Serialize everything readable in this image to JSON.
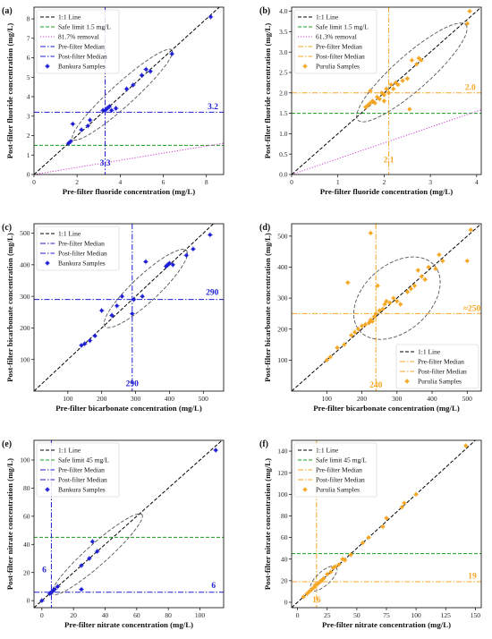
{
  "chart_data": [
    {
      "panel_label": "(a)",
      "type": "scatter",
      "xlabel": "Pre-filter fluoride concentration (mg/L)",
      "ylabel": "Post-filter fluoride concentration (mg/L)",
      "xlim": [
        0,
        8.8
      ],
      "ylim": [
        0,
        8.6
      ],
      "xticks": [
        0,
        2,
        4,
        6,
        8
      ],
      "yticks": [
        0,
        1,
        2,
        3,
        4,
        5,
        6,
        7,
        8
      ],
      "points_color": "#1f1fd6",
      "points": [
        [
          1.6,
          1.6
        ],
        [
          1.7,
          1.7
        ],
        [
          1.8,
          2.6
        ],
        [
          2.2,
          2.3
        ],
        [
          2.5,
          2.5
        ],
        [
          2.6,
          2.8
        ],
        [
          3.2,
          3.3
        ],
        [
          3.3,
          3.3
        ],
        [
          3.4,
          3.4
        ],
        [
          3.5,
          3.5
        ],
        [
          3.6,
          3.3
        ],
        [
          3.8,
          3.4
        ],
        [
          4.3,
          4.4
        ],
        [
          4.6,
          4.6
        ],
        [
          5.0,
          5.1
        ],
        [
          5.2,
          5.4
        ],
        [
          5.4,
          5.3
        ],
        [
          6.4,
          6.2
        ],
        [
          8.2,
          8.1
        ]
      ],
      "ellipse": {
        "cx": 4.1,
        "cy": 4.1,
        "rx": 6.5,
        "ry": 0.55
      },
      "median_x": 3.3,
      "median_y": 3.2,
      "median_color": "#1f1fd6",
      "median_dash": "dashdot",
      "safe_limit": 1.5,
      "removal_slope": 0.183,
      "legend": [
        "1:1 Line",
        "Safe limit 1.5 mg/L",
        "81.7% removal",
        "Pre-filter Median",
        "Post-filter Median",
        "Bankura Samples"
      ],
      "legend_styles": [
        "identity",
        "safe",
        "removal",
        "pre",
        "post",
        "marker"
      ],
      "legend_pos": "top-left",
      "annotations": [
        {
          "text": "3.2",
          "x": 8.55,
          "y": 3.35,
          "anchor": "end"
        },
        {
          "text": "3.3",
          "x": 3.3,
          "y": 0.45,
          "anchor": "middle"
        }
      ]
    },
    {
      "panel_label": "(b)",
      "type": "scatter",
      "xlabel": "Pre-filter fluoride concentration (mg/L)",
      "ylabel": "Post-filter fluoride concentration (mg/L)",
      "xlim": [
        0,
        4.1
      ],
      "ylim": [
        0,
        4.1
      ],
      "xticks": [
        0,
        1,
        2,
        3,
        4
      ],
      "yticks": [
        0,
        0.5,
        1,
        1.5,
        2,
        2.5,
        3,
        3.5,
        4
      ],
      "tick_decimals": 1,
      "points_color": "#f5a623",
      "points": [
        [
          1.6,
          1.65
        ],
        [
          1.65,
          1.7
        ],
        [
          1.7,
          1.75
        ],
        [
          1.75,
          1.8
        ],
        [
          1.8,
          1.75
        ],
        [
          1.85,
          1.9
        ],
        [
          1.9,
          1.85
        ],
        [
          1.95,
          2.0
        ],
        [
          2.0,
          1.95
        ],
        [
          2.05,
          2.1
        ],
        [
          2.1,
          2.0
        ],
        [
          2.15,
          2.2
        ],
        [
          2.2,
          2.1
        ],
        [
          2.25,
          2.25
        ],
        [
          2.3,
          2.2
        ],
        [
          2.4,
          2.3
        ],
        [
          2.5,
          2.35
        ],
        [
          2.55,
          1.6
        ],
        [
          2.6,
          2.8
        ],
        [
          2.7,
          2.7
        ],
        [
          2.75,
          2.85
        ],
        [
          2.8,
          2.8
        ],
        [
          1.7,
          2.05
        ],
        [
          2.0,
          1.8
        ],
        [
          3.8,
          3.7
        ],
        [
          3.85,
          4.0
        ]
      ],
      "ellipse": {
        "cx": 2.6,
        "cy": 2.5,
        "rx": 3.3,
        "ry": 0.4
      },
      "median_x": 2.1,
      "median_y": 2.0,
      "median_color": "#f5a623",
      "median_dash": "dashdot",
      "safe_limit": 1.5,
      "removal_slope": 0.387,
      "legend": [
        "1:1 Line",
        "Safe limit 1.5 mg/L",
        "61.3% removal",
        "Pre-filter Median",
        "Post-filter Median",
        "Purulia Samples"
      ],
      "legend_styles": [
        "identity",
        "safe",
        "removal",
        "pre",
        "post",
        "marker"
      ],
      "legend_pos": "top-left",
      "annotations": [
        {
          "text": "2.0",
          "x": 3.98,
          "y": 2.07,
          "anchor": "end"
        },
        {
          "text": "2.1",
          "x": 2.1,
          "y": 0.3,
          "anchor": "middle"
        }
      ]
    },
    {
      "panel_label": "(c)",
      "type": "scatter",
      "xlabel": "Pre-filter bicarbonate concentration (mg/L)",
      "ylabel": "Post-filter bicarbonate concentration (mg/L)",
      "xlim": [
        0,
        560
      ],
      "ylim": [
        0,
        530
      ],
      "xticks": [
        100,
        200,
        300,
        400,
        500
      ],
      "yticks": [
        100,
        200,
        300,
        400,
        500
      ],
      "points_color": "#1f1fd6",
      "points": [
        [
          140,
          145
        ],
        [
          150,
          150
        ],
        [
          165,
          160
        ],
        [
          180,
          175
        ],
        [
          200,
          255
        ],
        [
          230,
          240
        ],
        [
          245,
          270
        ],
        [
          260,
          300
        ],
        [
          290,
          245
        ],
        [
          295,
          290
        ],
        [
          320,
          300
        ],
        [
          330,
          410
        ],
        [
          390,
          395
        ],
        [
          395,
          400
        ],
        [
          400,
          405
        ],
        [
          410,
          400
        ],
        [
          450,
          430
        ],
        [
          470,
          450
        ],
        [
          520,
          495
        ]
      ],
      "ellipse": {
        "cx": 330,
        "cy": 325,
        "rx": 340,
        "ry": 40
      },
      "median_x": 290,
      "median_y": 290,
      "median_color": "#1f1fd6",
      "median_dash": "dashdot",
      "legend": [
        "1:1 Line",
        "Pre-filter Median",
        "Post-filter Median",
        "Bankura Samples"
      ],
      "legend_styles": [
        "identity",
        "pre",
        "post",
        "marker"
      ],
      "legend_pos": "top-left",
      "annotations": [
        {
          "text": "290",
          "x": 545,
          "y": 305,
          "anchor": "end"
        },
        {
          "text": "290",
          "x": 290,
          "y": 15,
          "anchor": "middle"
        }
      ]
    },
    {
      "panel_label": "(d)",
      "type": "scatter",
      "xlabel": "Pre-filter bicarbonate concentration (mg/L)",
      "ylabel": "Post-filter bicarbonate concentration (mg/L)",
      "xlim": [
        0,
        540
      ],
      "ylim": [
        0,
        540
      ],
      "xticks": [
        100,
        200,
        300,
        400,
        500
      ],
      "yticks": [
        100,
        200,
        300,
        400,
        500
      ],
      "points_color": "#f5a623",
      "points": [
        [
          100,
          100
        ],
        [
          110,
          110
        ],
        [
          130,
          140
        ],
        [
          150,
          150
        ],
        [
          160,
          350
        ],
        [
          170,
          180
        ],
        [
          180,
          190
        ],
        [
          190,
          200
        ],
        [
          200,
          210
        ],
        [
          210,
          215
        ],
        [
          220,
          220
        ],
        [
          225,
          230
        ],
        [
          230,
          225
        ],
        [
          235,
          240
        ],
        [
          240,
          250
        ],
        [
          245,
          340
        ],
        [
          250,
          260
        ],
        [
          260,
          265
        ],
        [
          265,
          280
        ],
        [
          270,
          290
        ],
        [
          280,
          285
        ],
        [
          290,
          300
        ],
        [
          300,
          290
        ],
        [
          310,
          280
        ],
        [
          330,
          320
        ],
        [
          340,
          330
        ],
        [
          350,
          340
        ],
        [
          360,
          390
        ],
        [
          370,
          370
        ],
        [
          380,
          360
        ],
        [
          390,
          400
        ],
        [
          410,
          395
        ],
        [
          420,
          440
        ],
        [
          430,
          420
        ],
        [
          500,
          420
        ],
        [
          510,
          520
        ],
        [
          225,
          510
        ]
      ],
      "ellipse": {
        "cx": 300,
        "cy": 300,
        "rx": 300,
        "ry": 100
      },
      "median_x": 240,
      "median_y": 250,
      "median_color": "#f5a623",
      "median_dash": "dashdot",
      "legend": [
        "1:1 Line",
        "Pre-filter Median",
        "Post-filter Median",
        "Purulia Samples"
      ],
      "legend_styles": [
        "identity",
        "pre",
        "post",
        "marker"
      ],
      "legend_pos": "bottom-right",
      "annotations": [
        {
          "text": "≈250",
          "x": 538,
          "y": 258,
          "anchor": "end"
        },
        {
          "text": "240",
          "x": 240,
          "y": 12,
          "anchor": "middle"
        }
      ]
    },
    {
      "panel_label": "(e)",
      "type": "scatter",
      "xlabel": "Pre-filter nitrate concentration (mg/L)",
      "ylabel": "Post-filter nitrate concentration (mg/L)",
      "xlim": [
        -5,
        115
      ],
      "ylim": [
        -5,
        114
      ],
      "xticks": [
        0,
        20,
        40,
        60,
        80,
        100
      ],
      "yticks": [
        0,
        20,
        40,
        60,
        80,
        100
      ],
      "points_color": "#1f1fd6",
      "points": [
        [
          0,
          0
        ],
        [
          5,
          5
        ],
        [
          6,
          6
        ],
        [
          7,
          7
        ],
        [
          8,
          8
        ],
        [
          10,
          10
        ],
        [
          25,
          25
        ],
        [
          25,
          8
        ],
        [
          30,
          30
        ],
        [
          32,
          42
        ],
        [
          35,
          35
        ],
        [
          110,
          107
        ]
      ],
      "ellipse": {
        "cx": 35,
        "cy": 33,
        "rx": 80,
        "ry": 7
      },
      "median_x": 6,
      "median_y": 6,
      "median_color": "#1f1fd6",
      "median_dash": "dashdot",
      "safe_limit": 45,
      "legend": [
        "1:1 Line",
        "Safe limit 45 mg/L",
        "Pre-filter Median",
        "Post-filter Median",
        "Bankura Samples"
      ],
      "legend_styles": [
        "identity",
        "safe",
        "pre",
        "post",
        "marker"
      ],
      "legend_pos": "top-left",
      "annotations": [
        {
          "text": "6",
          "x": 110,
          "y": 9,
          "anchor": "end"
        },
        {
          "text": "6",
          "x": 1.5,
          "y": 20,
          "anchor": "middle"
        }
      ]
    },
    {
      "panel_label": "(f)",
      "type": "scatter",
      "xlabel": "Pre-filter nitrate concentration (mg/L)",
      "ylabel": "Post-filter nitrate concentration (mg/L)",
      "xlim": [
        -5,
        155
      ],
      "ylim": [
        -5,
        150
      ],
      "xticks": [
        0,
        25,
        50,
        75,
        100,
        125,
        150
      ],
      "yticks": [
        0,
        20,
        40,
        60,
        80,
        100,
        120,
        140
      ],
      "points_color": "#f5a623",
      "points": [
        [
          5,
          5
        ],
        [
          8,
          8
        ],
        [
          10,
          10
        ],
        [
          12,
          12
        ],
        [
          14,
          14
        ],
        [
          15,
          16
        ],
        [
          17,
          17
        ],
        [
          19,
          19
        ],
        [
          20,
          20
        ],
        [
          22,
          22
        ],
        [
          25,
          26
        ],
        [
          28,
          28
        ],
        [
          30,
          32
        ],
        [
          32,
          33
        ],
        [
          35,
          35
        ],
        [
          38,
          40
        ],
        [
          40,
          39
        ],
        [
          45,
          44
        ],
        [
          55,
          55
        ],
        [
          60,
          60
        ],
        [
          72,
          70
        ],
        [
          75,
          78
        ],
        [
          88,
          88
        ],
        [
          90,
          92
        ],
        [
          100,
          100
        ],
        [
          142,
          145
        ]
      ],
      "ellipse": {
        "cx": 22,
        "cy": 22,
        "rx": 30,
        "ry": 6
      },
      "median_x": 16,
      "median_y": 19,
      "median_color": "#f5a623",
      "median_dash": "dashdot",
      "safe_limit": 45,
      "legend": [
        "1:1 Line",
        "Safe limit 45 mg/L",
        "Pre-filter Median",
        "Post-filter Median",
        "Purulia Samples"
      ],
      "legend_styles": [
        "identity",
        "safe",
        "pre",
        "post",
        "marker"
      ],
      "legend_pos": "top-left",
      "annotations": [
        {
          "text": "19",
          "x": 151,
          "y": 22,
          "anchor": "end"
        },
        {
          "text": "16",
          "x": 16,
          "y": 0,
          "anchor": "middle"
        }
      ]
    }
  ],
  "colors": {
    "identity": "#000000",
    "safe": "#1a9e1a",
    "removal": "#d33fd3",
    "ellipse": "#555555"
  }
}
